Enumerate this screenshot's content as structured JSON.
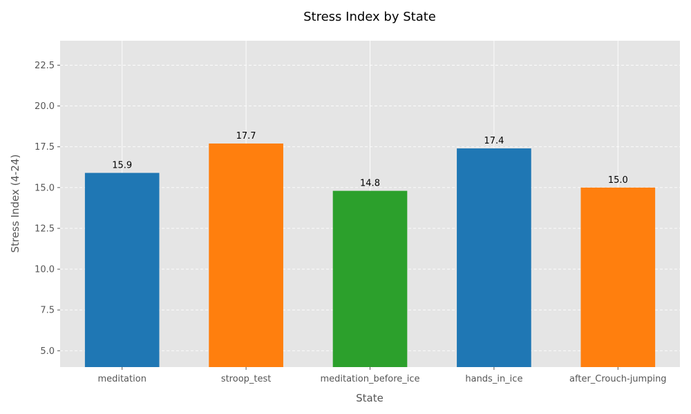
{
  "chart_data": {
    "type": "bar",
    "title": "Stress Index by State",
    "xlabel": "State",
    "ylabel": "Stress Index (4-24)",
    "categories": [
      "meditation",
      "stroop_test",
      "meditation_before_ice",
      "hands_in_ice",
      "after_Crouch-jumping"
    ],
    "values": [
      15.9,
      17.7,
      14.8,
      17.4,
      15.0
    ],
    "data_labels": [
      "15.9",
      "17.7",
      "14.8",
      "17.4",
      "15.0"
    ],
    "colors": [
      "#1f77b4",
      "#ff7f0e",
      "#2ca02c",
      "#1f77b4",
      "#ff7f0e"
    ],
    "ylim": [
      4,
      24
    ],
    "yticks": [
      5.0,
      7.5,
      10.0,
      12.5,
      15.0,
      17.5,
      20.0,
      22.5
    ],
    "ytick_labels": [
      "5.0",
      "7.5",
      "10.0",
      "12.5",
      "15.0",
      "17.5",
      "20.0",
      "22.5"
    ],
    "grid": true,
    "background": "#e5e5e5"
  }
}
